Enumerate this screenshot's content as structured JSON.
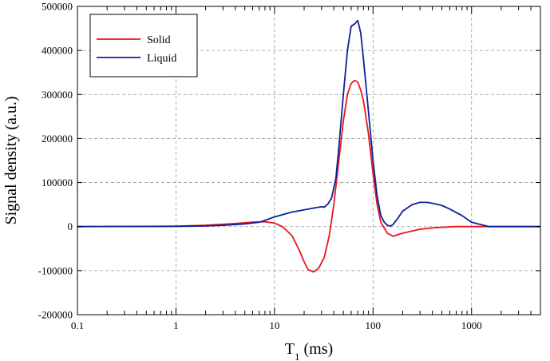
{
  "chart_data": {
    "type": "line",
    "xscale": "log",
    "xlim": [
      0.1,
      5000
    ],
    "ylim": [
      -200000,
      500000
    ],
    "xlabel_main": "T",
    "xlabel_sub": "1",
    "xlabel_unit": " (ms)",
    "ylabel": "Signal density (a.u.)",
    "x_tick_labels": [
      "0.1",
      "1",
      "10",
      "100",
      "1000"
    ],
    "x_tick_values": [
      0.1,
      1,
      10,
      100,
      1000
    ],
    "y_tick_labels": [
      "500000",
      "400000",
      "300000",
      "200000",
      "100000",
      "0",
      "-100000",
      "-200000"
    ],
    "y_tick_values": [
      500000,
      400000,
      300000,
      200000,
      100000,
      0,
      -100000,
      -200000
    ],
    "grid": true,
    "legend_placement": "top-left",
    "series": [
      {
        "name": "Solid",
        "color": "#e8161b",
        "x": [
          0.1,
          0.5,
          1,
          2,
          4,
          6,
          8,
          10,
          12,
          15,
          18,
          20,
          22,
          25,
          28,
          32,
          36,
          40,
          45,
          50,
          55,
          60,
          65,
          70,
          75,
          80,
          90,
          100,
          110,
          120,
          140,
          160,
          180,
          200,
          250,
          300,
          400,
          500,
          700,
          1000,
          1500,
          2000,
          5000
        ],
        "y": [
          0,
          500,
          1000,
          3000,
          7000,
          10000,
          11000,
          8000,
          0,
          -20000,
          -55000,
          -80000,
          -98000,
          -103000,
          -95000,
          -70000,
          -20000,
          50000,
          150000,
          240000,
          300000,
          325000,
          332000,
          328000,
          310000,
          285000,
          210000,
          120000,
          50000,
          10000,
          -15000,
          -22000,
          -18000,
          -15000,
          -10000,
          -6000,
          -3000,
          -1500,
          0,
          0,
          0,
          0,
          0
        ]
      },
      {
        "name": "Liquid",
        "color": "#0f1f9a",
        "x": [
          0.1,
          1,
          2,
          3,
          5,
          7,
          8,
          10,
          15,
          20,
          25,
          30,
          32,
          35,
          38,
          42,
          45,
          50,
          55,
          60,
          65,
          70,
          75,
          80,
          90,
          100,
          110,
          120,
          130,
          140,
          150,
          160,
          180,
          200,
          250,
          300,
          350,
          400,
          500,
          600,
          800,
          1000,
          1500,
          2000,
          5000
        ],
        "y": [
          0,
          500,
          1500,
          3000,
          6000,
          10000,
          14000,
          22000,
          33000,
          38000,
          42000,
          45000,
          44000,
          52000,
          65000,
          110000,
          180000,
          300000,
          400000,
          455000,
          460000,
          468000,
          440000,
          380000,
          260000,
          150000,
          70000,
          25000,
          10000,
          3000,
          1000,
          5000,
          20000,
          35000,
          50000,
          55000,
          55000,
          53000,
          48000,
          40000,
          25000,
          10000,
          0,
          0,
          0
        ]
      }
    ]
  }
}
